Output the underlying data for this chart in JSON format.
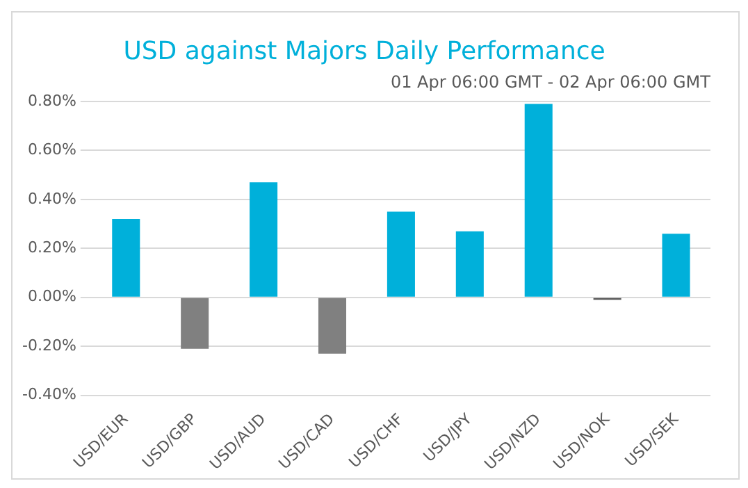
{
  "chart_data": {
    "type": "bar",
    "title": "USD against Majors Daily Performance",
    "subtitle": "01 Apr 06:00 GMT - 02 Apr 06:00 GMT",
    "categories": [
      "USD/EUR",
      "USD/GBP",
      "USD/AUD",
      "USD/CAD",
      "USD/CHF",
      "USD/JPY",
      "USD/NZD",
      "USD/NOK",
      "USD/SEK"
    ],
    "values": [
      0.32,
      -0.21,
      0.47,
      -0.23,
      0.35,
      0.27,
      0.79,
      -0.01,
      0.26
    ],
    "colors": [
      "#00b0da",
      "#808080",
      "#00b0da",
      "#808080",
      "#00b0da",
      "#00b0da",
      "#00b0da",
      "#595959",
      "#00b0da"
    ],
    "ylim": [
      -0.4,
      0.8
    ],
    "yticks": [
      {
        "value": -0.4,
        "label": "-0.40%"
      },
      {
        "value": -0.2,
        "label": "-0.20%"
      },
      {
        "value": 0,
        "label": "0.00%"
      },
      {
        "value": 0.2,
        "label": "0.20%"
      },
      {
        "value": 0.4,
        "label": "0.40%"
      },
      {
        "value": 0.6,
        "label": "0.60%"
      },
      {
        "value": 0.8,
        "label": "0.80%"
      }
    ],
    "grid": "y",
    "legend": false
  }
}
